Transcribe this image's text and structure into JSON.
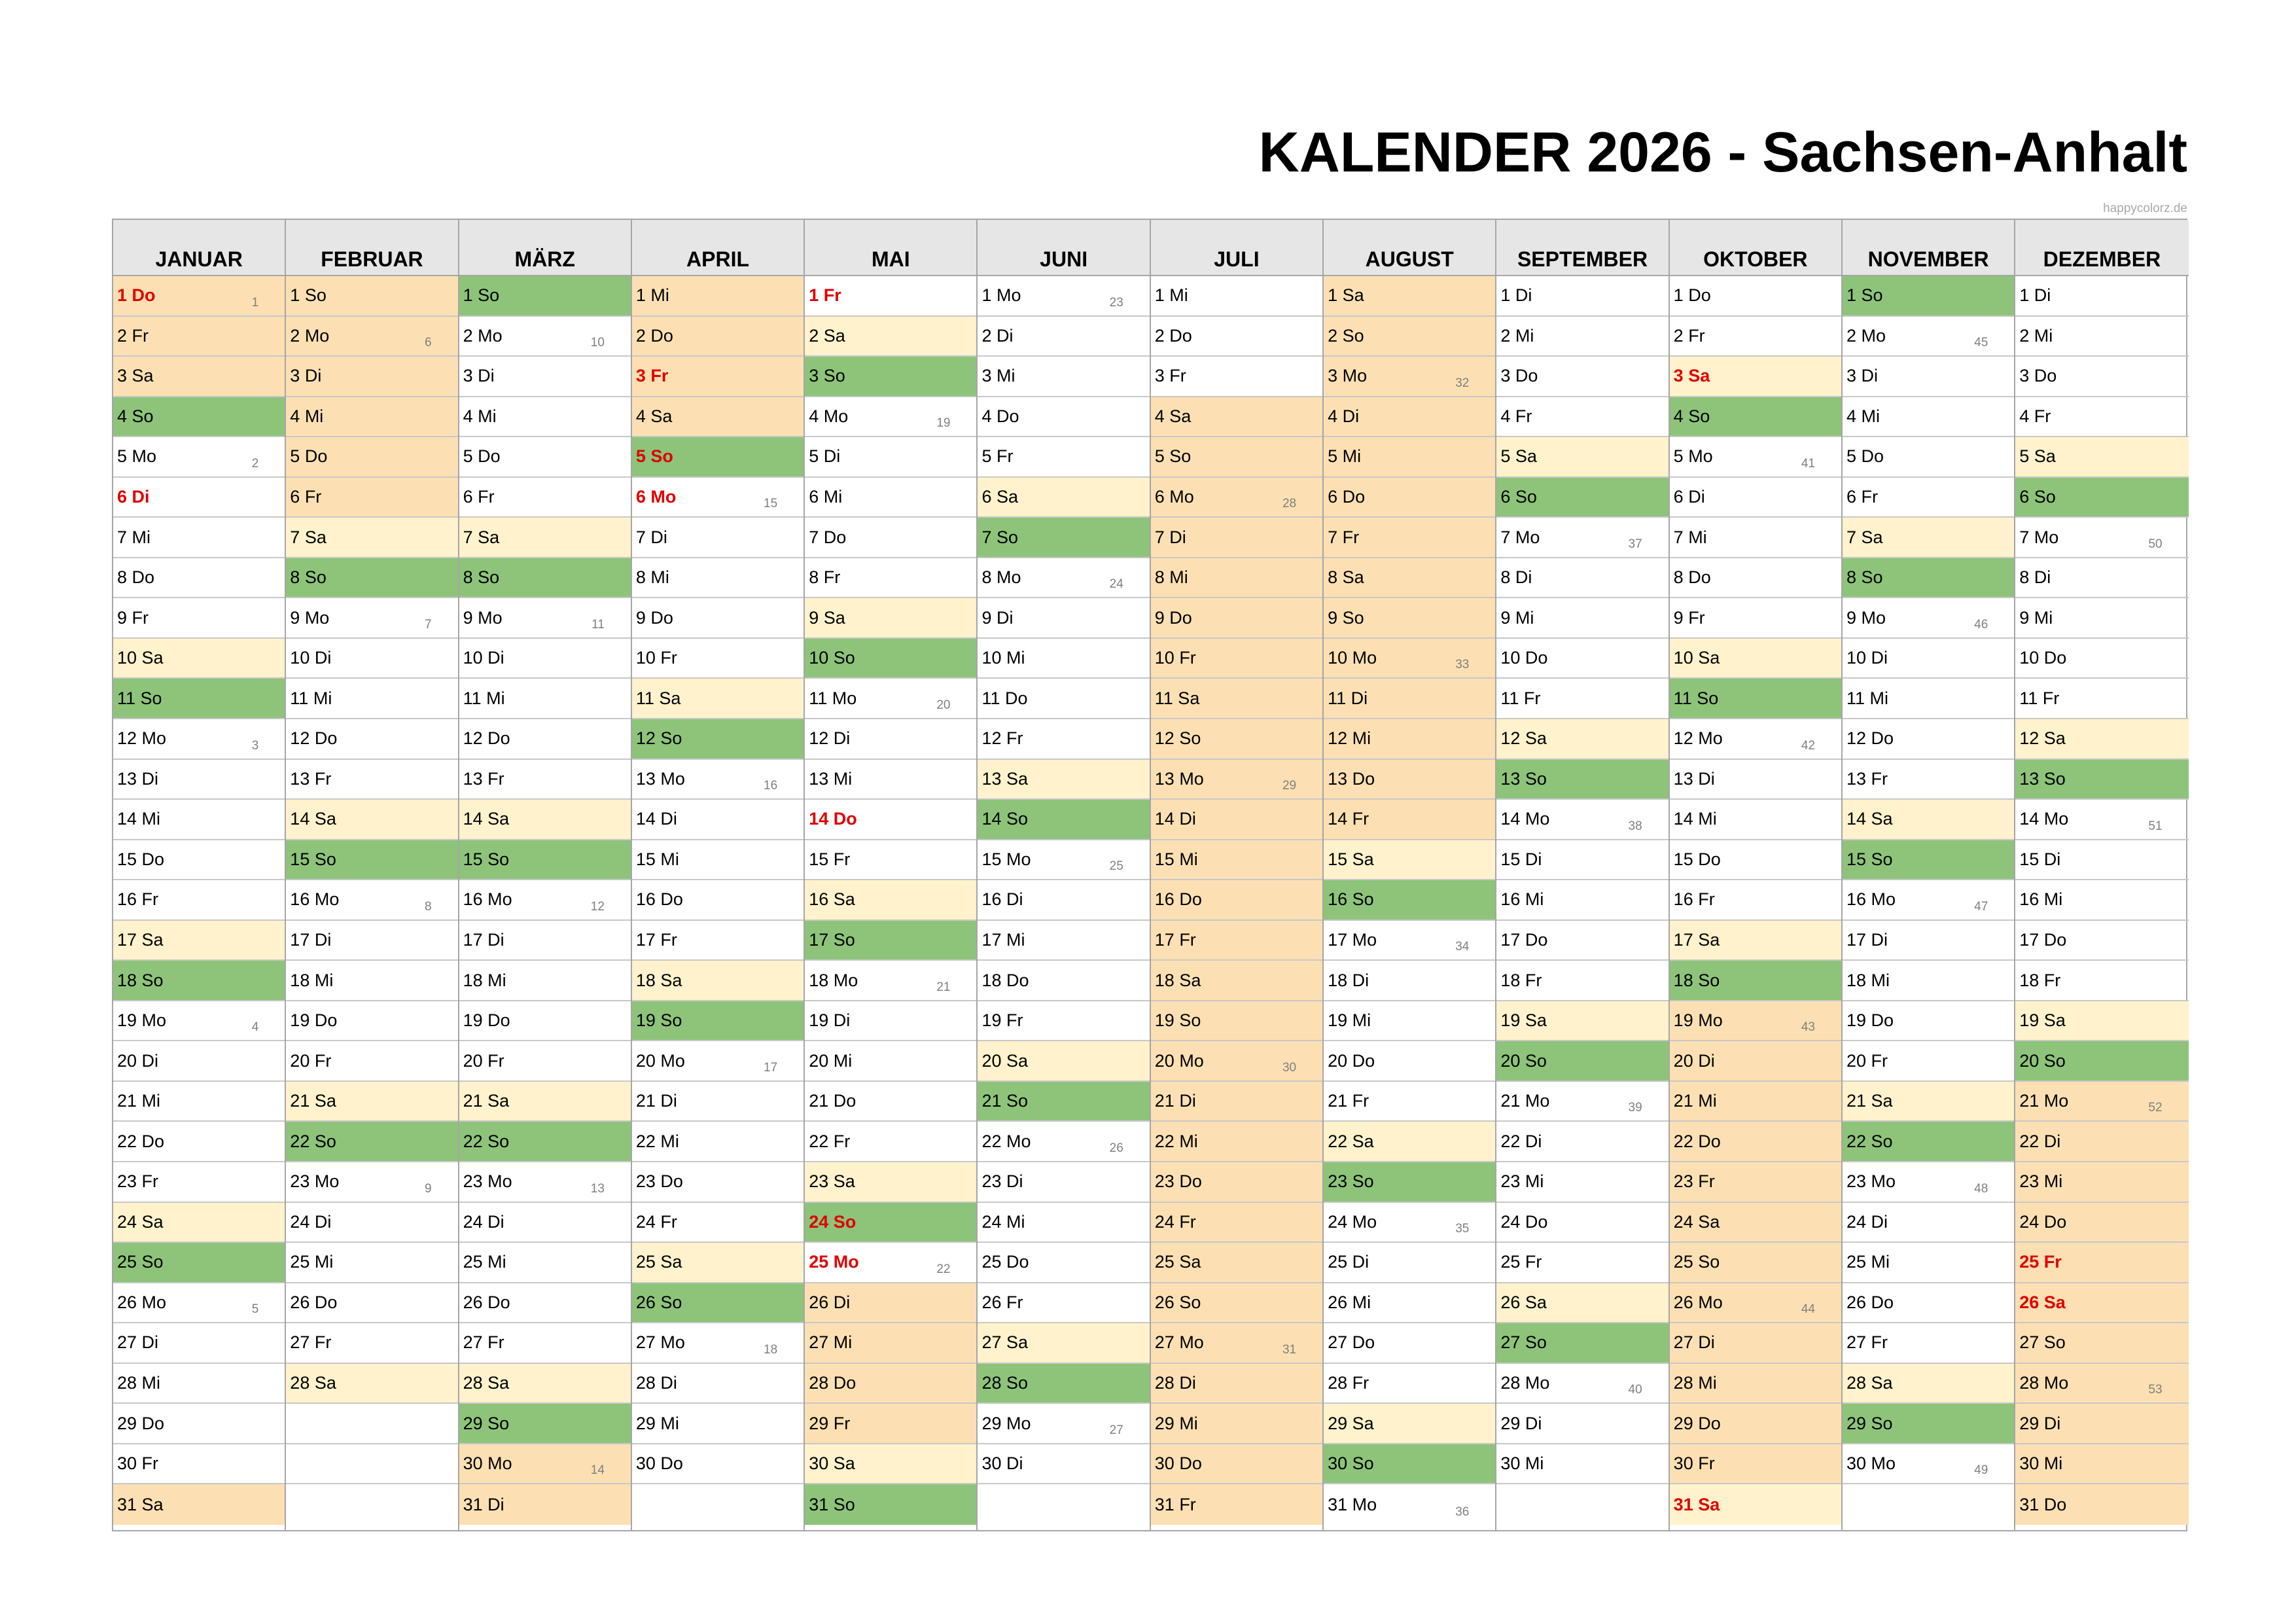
{
  "title": "KALENDER 2026 - Sachsen-Anhalt",
  "site": "happycolorz.de",
  "year": 2026,
  "weekday_abbrev": [
    "So",
    "Mo",
    "Di",
    "Mi",
    "Do",
    "Fr",
    "Sa"
  ],
  "months": [
    {
      "name": "JANUAR",
      "days": 31
    },
    {
      "name": "FEBRUAR",
      "days": 28
    },
    {
      "name": "MÄRZ",
      "days": 31
    },
    {
      "name": "APRIL",
      "days": 30
    },
    {
      "name": "MAI",
      "days": 31
    },
    {
      "name": "JUNI",
      "days": 30
    },
    {
      "name": "JULI",
      "days": 31
    },
    {
      "name": "AUGUST",
      "days": 31
    },
    {
      "name": "SEPTEMBER",
      "days": 30
    },
    {
      "name": "OKTOBER",
      "days": 31
    },
    {
      "name": "NOVEMBER",
      "days": 30
    },
    {
      "name": "DEZEMBER",
      "days": 31
    }
  ],
  "holidays": [
    "1-1",
    "1-6",
    "4-3",
    "4-5",
    "4-6",
    "5-1",
    "5-14",
    "5-24",
    "5-25",
    "10-3",
    "10-31",
    "12-25",
    "12-26"
  ],
  "school_holidays": [
    {
      "from": "1-1",
      "to": "1-3"
    },
    {
      "from": "1-31",
      "to": "2-6"
    },
    {
      "from": "3-30",
      "to": "4-4"
    },
    {
      "from": "5-26",
      "to": "5-29"
    },
    {
      "from": "7-4",
      "to": "8-14"
    },
    {
      "from": "10-19",
      "to": "10-30"
    },
    {
      "from": "12-21",
      "to": "12-31"
    }
  ],
  "colors": {
    "saturday": "#fff2cc",
    "sunday": "#8dc47a",
    "school_holidays": "#fce0b3",
    "holiday_text": "#e00000"
  }
}
